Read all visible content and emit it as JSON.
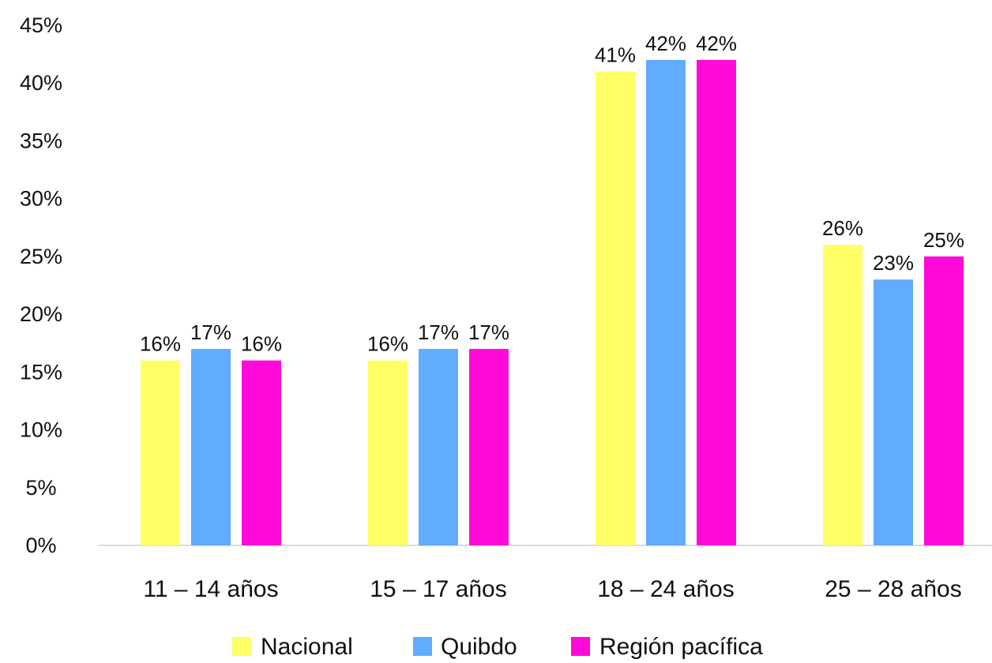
{
  "chart_data": {
    "type": "bar",
    "title": "",
    "xlabel": "",
    "ylabel": "",
    "categories": [
      "11 – 14 años",
      "15 – 17 años",
      "18 – 24 años",
      "25 – 28 años"
    ],
    "series": [
      {
        "name": "Nacional",
        "color": "#FFFF66",
        "values": [
          16,
          16,
          41,
          26
        ],
        "labels": [
          "16%",
          "16%",
          "41%",
          "26%"
        ]
      },
      {
        "name": "Quibdo",
        "color": "#61ACFF",
        "values": [
          17,
          17,
          42,
          23
        ],
        "labels": [
          "17%",
          "17%",
          "42%",
          "23%"
        ]
      },
      {
        "name": "Región pacífica",
        "color": "#FF0AD9",
        "values": [
          16,
          17,
          42,
          25
        ],
        "labels": [
          "16%",
          "17%",
          "42%",
          "25%"
        ]
      }
    ],
    "ylim": [
      0,
      45
    ],
    "yticks": [
      "0%",
      "5%",
      "10%",
      "15%",
      "20%",
      "25%",
      "30%",
      "35%",
      "40%",
      "45%"
    ],
    "ytick_values": [
      0,
      5,
      10,
      15,
      20,
      25,
      30,
      35,
      40,
      45
    ],
    "grid": false,
    "legend_position": "bottom"
  }
}
